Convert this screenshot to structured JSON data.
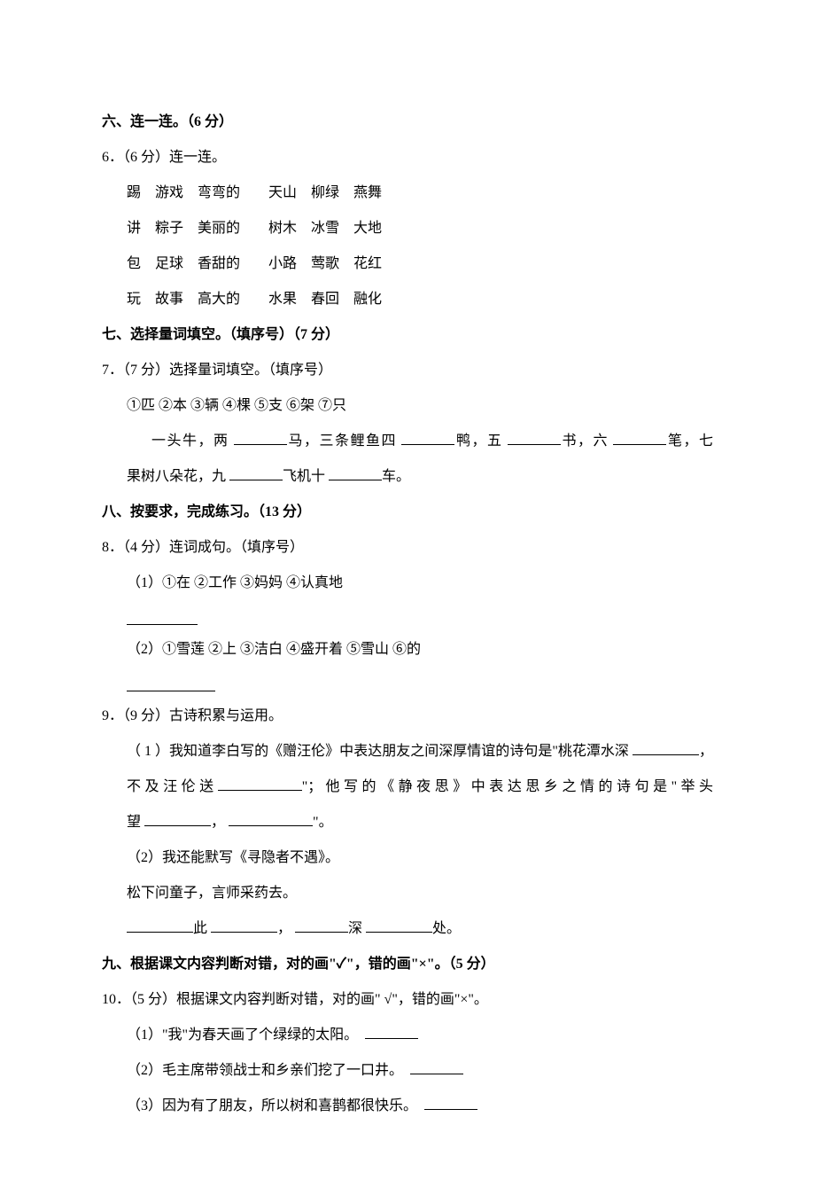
{
  "sections": {
    "six": {
      "header": "六、连一连。（6 分）"
    },
    "seven": {
      "header": "七、选择量词填空。（填序号）（7 分）"
    },
    "eight": {
      "header": "八、按要求，完成练习。（13 分）"
    },
    "nine": {
      "header": "九、根据课文内容判断对错，对的画\"✓\"，错的画\"×\"。（5 分）"
    }
  },
  "q6": {
    "stem": "6．（6 分）连一连。",
    "rows": [
      "踢　游戏　弯弯的　　天山　柳绿　燕舞",
      "讲　粽子　美丽的　　树木　冰雪　大地",
      "包　足球　香甜的　　小路　莺歌　花红",
      "玩　故事　高大的　　水果　春回　融化"
    ]
  },
  "q7": {
    "stem": "7．（7 分）选择量词填空。（填序号）",
    "options": "①匹 ②本 ③辆 ④棵 ⑤支 ⑥架 ⑦只",
    "parts": {
      "pre1": "一头牛，两 ",
      "mid1": "马，三条鲤鱼四 ",
      "mid2": "鸭，五 ",
      "mid3": "书，六 ",
      "mid4": "笔，七",
      "line2a": "果树八朵花，九 ",
      "line2b": "飞机十 ",
      "line2c": "车。"
    }
  },
  "q8": {
    "stem": "8．（4 分）连词成句。（填序号）",
    "items": {
      "i1": "（1）①在 ②工作 ③妈妈 ④认真地",
      "i2": "（2）①雪莲 ②上 ③洁白 ④盛开着 ⑤雪山 ⑥的"
    }
  },
  "q9": {
    "stem": "9．（9 分）古诗积累与运用。",
    "p1a": "（ 1 ）我知道李白写的《赠汪伦》中表达朋友之间深厚情谊的诗句是\"桃花潭水深 ",
    "p1a_end": "，",
    "p1b_pre": "不 及 汪 伦 送  ",
    "p1b_mid": "\"； 他 写 的 《 静 夜 思 》 中 表 达 思 乡 之 情 的 诗 句 是 \" 举 头",
    "p1c_pre": "望 ",
    "p1c_sep": "， ",
    "p1c_end": "\"。",
    "p2": "（2）我还能默写《寻隐者不遇》。",
    "p2line1": "松下问童子，言师采药去。",
    "p2fill": {
      "a": "此 ",
      "b": "， ",
      "c": "深 ",
      "d": "处。"
    }
  },
  "q10": {
    "stem": "10．（5 分）根据课文内容判断对错，对的画\" √\"，错的画\"×\"。",
    "items": {
      "i1": "（1）\"我\"为春天画了个绿绿的太阳。　",
      "i2": "（2）毛主席带领战士和乡亲们挖了一口井。　",
      "i3": "（3）因为有了朋友，所以树和喜鹊都很快乐。　"
    }
  }
}
